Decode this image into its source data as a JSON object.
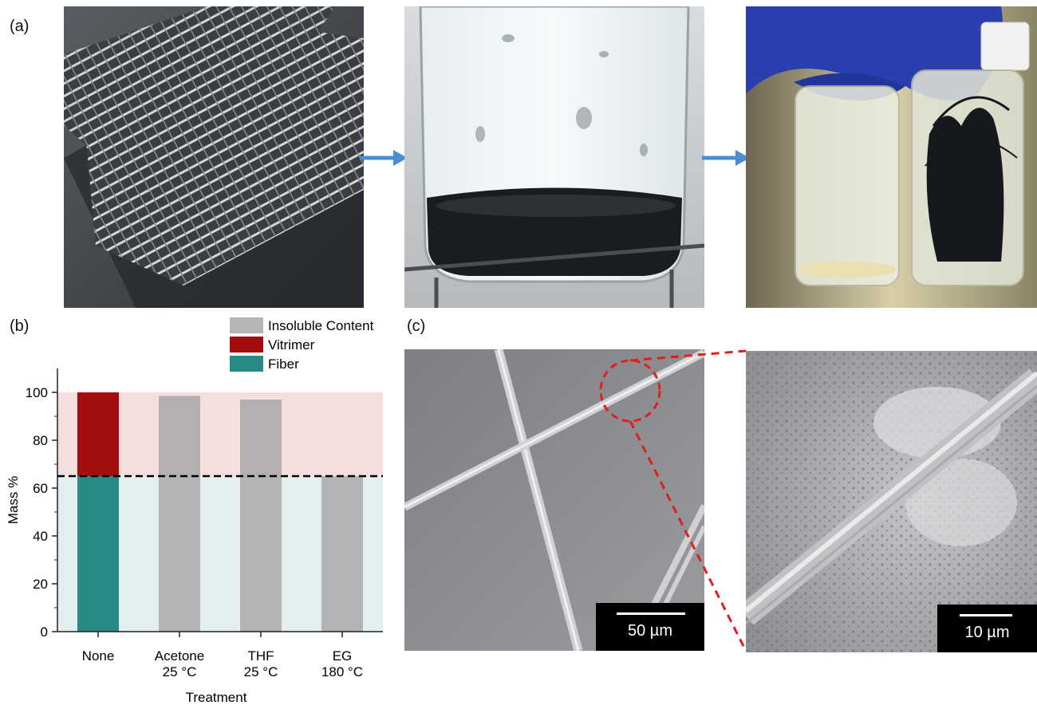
{
  "panels": {
    "a": "(a)",
    "b": "(b)",
    "c": "(c)"
  },
  "chart_data": {
    "type": "bar",
    "stacked": true,
    "xlabel": "Treatment",
    "ylabel": "Mass %",
    "ylim": [
      0,
      110
    ],
    "yticks": [
      "0",
      "20",
      "40",
      "60",
      "80",
      "100"
    ],
    "categories": [
      "None",
      "Acetone\n25 °C",
      "THF\n25 °C",
      "EG\n180 °C"
    ],
    "category_lines": [
      [
        "None"
      ],
      [
        "Acetone",
        "25 °C"
      ],
      [
        "THF",
        "25 °C"
      ],
      [
        "EG",
        "180 °C"
      ]
    ],
    "series": [
      {
        "name": "Fiber",
        "color": "#2a8a86",
        "values": [
          65,
          0,
          0,
          0
        ]
      },
      {
        "name": "Vitrimer",
        "color": "#a50e0e",
        "values": [
          35,
          0,
          0,
          0
        ]
      },
      {
        "name": "Insoluble Content",
        "color": "#a8a8aa",
        "values": [
          0,
          98.5,
          97,
          65
        ]
      }
    ],
    "legend_order": [
      "Insoluble Content",
      "Vitrimer",
      "Fiber"
    ],
    "reference_line": 65,
    "bands": [
      {
        "from": 0,
        "to": 65,
        "color": "#e3eef0"
      },
      {
        "from": 65,
        "to": 100,
        "color": "#f4dede"
      }
    ]
  },
  "scale_bars": {
    "left": "50 µm",
    "right": "10 µm"
  },
  "colors": {
    "arrow": "#4a8fd6",
    "zoom": "#e0201c",
    "glove": "#2a3fae"
  }
}
